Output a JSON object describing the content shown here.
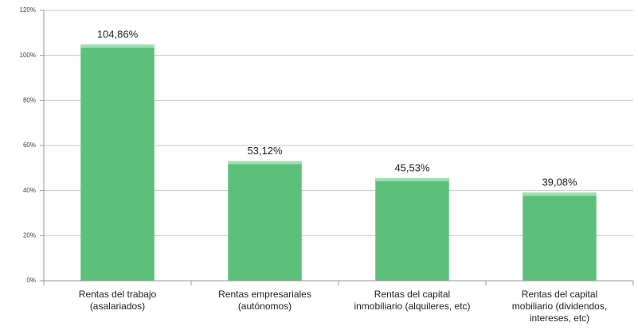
{
  "chart_data": {
    "type": "bar",
    "categories": [
      "Rentas del trabajo\n(asalariados)",
      "Rentas empresariales\n(autónomos)",
      "Rentas del capital\ninmobiliario (alquileres, etc)",
      "Rentas del capital\nmobiliario (dividendos,\nintereses, etc)"
    ],
    "values": [
      104.86,
      53.12,
      45.53,
      39.08
    ],
    "value_labels": [
      "104,86%",
      "53,12%",
      "45,53%",
      "39,08%"
    ],
    "color": "#5cc07a",
    "ylim": [
      0,
      120
    ],
    "yticks": [
      {
        "value": 0,
        "label": "0%"
      },
      {
        "value": 20,
        "label": "20%"
      },
      {
        "value": 40,
        "label": "40%"
      },
      {
        "value": 60,
        "label": "60%"
      },
      {
        "value": 80,
        "label": "80%"
      },
      {
        "value": 100,
        "label": "100%"
      },
      {
        "value": 120,
        "label": "120%"
      }
    ],
    "grid": true
  }
}
